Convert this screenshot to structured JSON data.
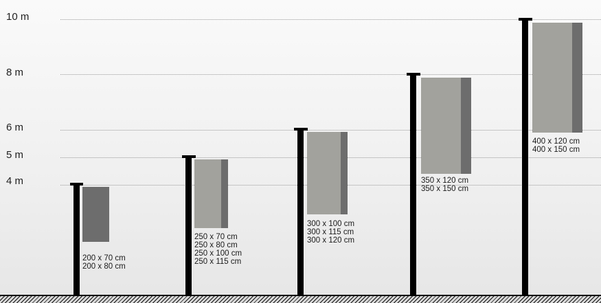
{
  "levels": [
    "10 m",
    "8 m",
    "6 m",
    "5 m",
    "4 m"
  ],
  "colors": {
    "pole": "#000000",
    "flag_light": "#a2a29d",
    "flag_dark": "#6d6d6d",
    "gridline": "#9a9a9a"
  },
  "flagpoles": [
    {
      "height": "4 m",
      "sizes": [
        "200 x 70 cm",
        "200 x 80 cm"
      ]
    },
    {
      "height": "5 m",
      "sizes": [
        "250 x 70 cm",
        "250 x 80 cm",
        "250 x 100 cm",
        "250 x 115 cm"
      ]
    },
    {
      "height": "6 m",
      "sizes": [
        "300 x 100 cm",
        "300 x 115 cm",
        "300 x 120 cm"
      ]
    },
    {
      "height": "8 m",
      "sizes": [
        "350 x 120 cm",
        "350 x 150 cm"
      ]
    },
    {
      "height": "10 m",
      "sizes": [
        "400 x 120 cm",
        "400 x 150 cm"
      ]
    }
  ]
}
